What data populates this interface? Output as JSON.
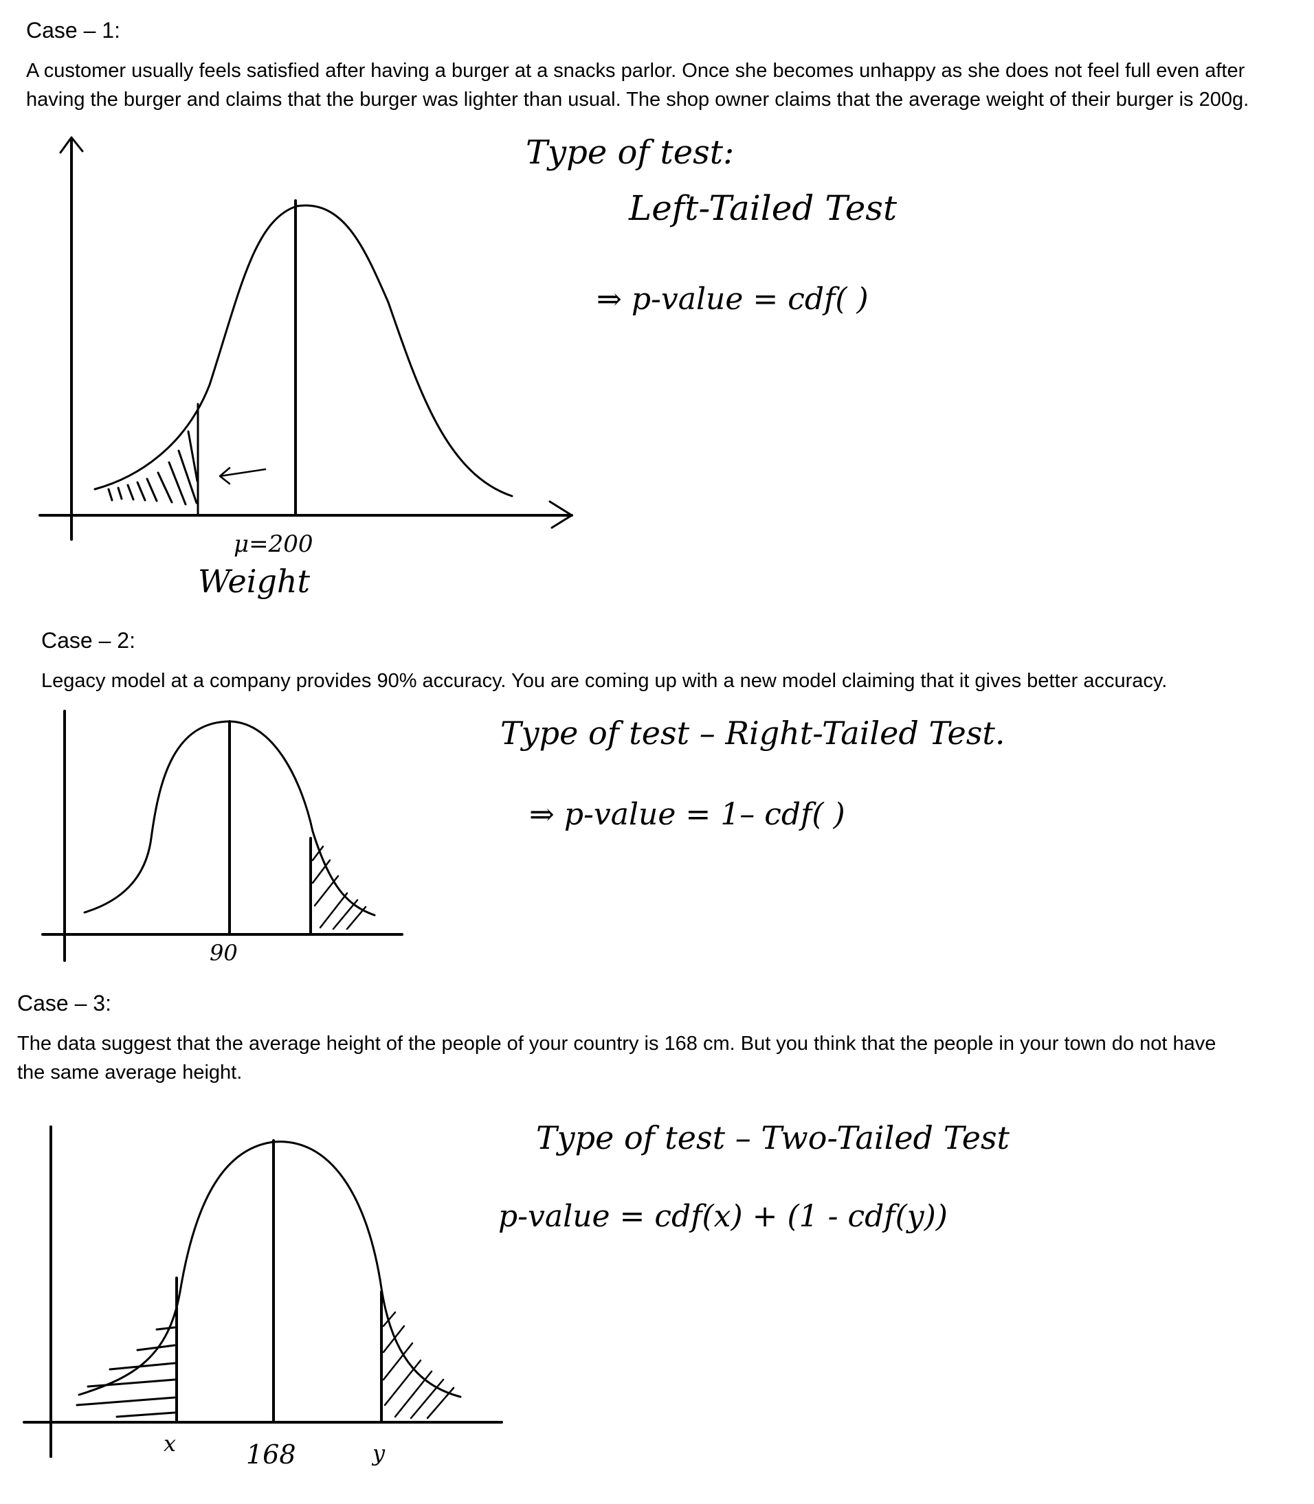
{
  "case1": {
    "title": "Case – 1:",
    "description": "A customer usually feels satisfied after having a burger at a snacks parlor. Once she becomes unhappy as she does not feel full even after having the burger and claims that the burger was lighter than usual. The shop owner claims that the average weight of their burger is 200g.",
    "note_type": "Type of test:",
    "note_test": "Left-Tailed Test",
    "note_formula": "⇒ p-value  =  cdf( )",
    "mu_label": "μ=200",
    "axis_label": "Weight"
  },
  "case2": {
    "title": "Case – 2:",
    "description": "Legacy model at a company provides 90% accuracy. You are coming up with a new model claiming that it gives better accuracy.",
    "note_type": "Type of test – Right-Tailed Test.",
    "note_formula": "⇒ p-value    =    1– cdf( )",
    "mean_label": "90"
  },
  "case3": {
    "title": "Case – 3:",
    "description": "The data suggest that the average height of the people of your country is 168 cm. But you think that the people in your town do not have the same average height.",
    "note_type": "Type of test – Two-Tailed Test",
    "note_formula": "p-value = cdf(x) + (1 - cdf(y))",
    "x_label": "x",
    "mean_label": "168",
    "y_label": "y"
  }
}
